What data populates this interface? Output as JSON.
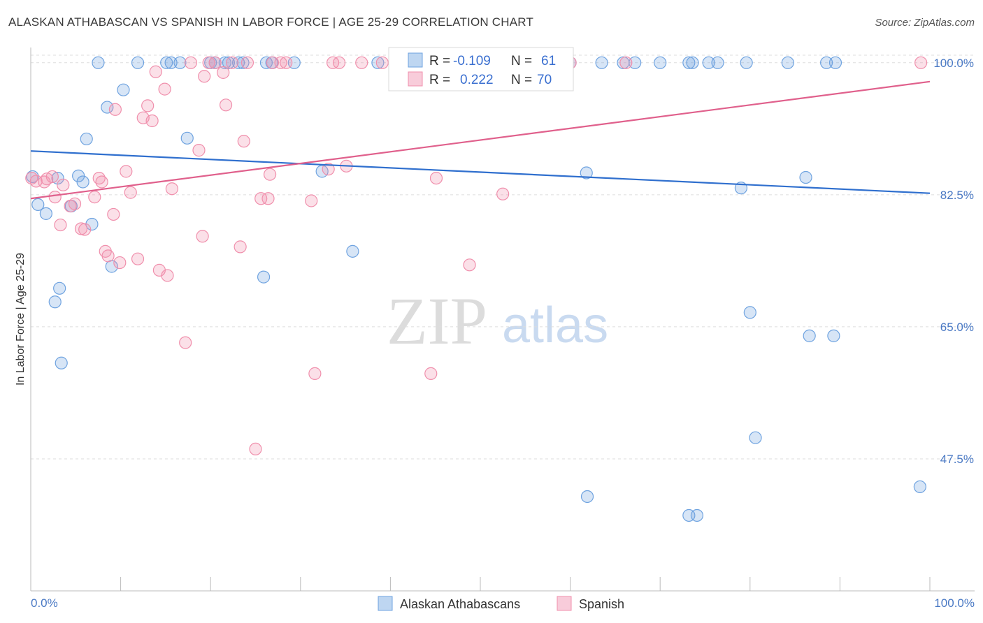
{
  "title": "ALASKAN ATHABASCAN VS SPANISH IN LABOR FORCE | AGE 25-29 CORRELATION CHART",
  "source": "Source: ZipAtlas.com",
  "watermark": {
    "zip": "ZIP",
    "atlas": "atlas"
  },
  "colors": {
    "blue": "#6fa3e0",
    "blue_fill": "rgba(111,163,224,0.28)",
    "blue_line": "#2f6fce",
    "pink": "#f08fac",
    "pink_fill": "rgba(240,143,172,0.28)",
    "pink_line": "#e0608c",
    "tick_text": "#4a79c4",
    "grid": "#dddddd"
  },
  "legend": {
    "row1": {
      "r_label": "R =",
      "r_value": "-0.109",
      "n_label": "N =",
      "n_value": "61"
    },
    "row2": {
      "r_label": "R =",
      "r_value": "0.222",
      "n_label": "N =",
      "n_value": "70"
    }
  },
  "chart_data": {
    "type": "scatter",
    "title": "ALASKAN ATHABASCAN VS SPANISH IN LABOR FORCE | AGE 25-29 CORRELATION CHART",
    "xlabel": "",
    "ylabel": "In Labor Force | Age 25-29",
    "xlim": [
      0,
      100
    ],
    "ylim": [
      30,
      103.5
    ],
    "x_tick_labels": [
      "0.0%",
      "100.0%"
    ],
    "y_ticks": [
      47.5,
      65.0,
      82.5,
      100.0
    ],
    "y_tick_labels": [
      "47.5%",
      "65.0%",
      "82.5%",
      "100.0%"
    ],
    "grid": "horizontal dashed",
    "legend_position": "top-center",
    "series": [
      {
        "name": "Alaskan Athabascans",
        "r": -0.109,
        "n": 61,
        "trend": [
          [
            0,
            88.3
          ],
          [
            100,
            82.7
          ]
        ],
        "points": [
          [
            0.2,
            84.9
          ],
          [
            0.8,
            81.2
          ],
          [
            1.7,
            80
          ],
          [
            2.7,
            68.3
          ],
          [
            3.0,
            84.7
          ],
          [
            3.2,
            70.1
          ],
          [
            3.4,
            60.2
          ],
          [
            4.5,
            81
          ],
          [
            5.3,
            85
          ],
          [
            5.8,
            84.2
          ],
          [
            6.2,
            89.9
          ],
          [
            6.8,
            78.6
          ],
          [
            7.5,
            100
          ],
          [
            8.5,
            94.1
          ],
          [
            9.0,
            73
          ],
          [
            10.3,
            96.4
          ],
          [
            11.9,
            100
          ],
          [
            15.1,
            100
          ],
          [
            15.6,
            100
          ],
          [
            16.6,
            100
          ],
          [
            17.4,
            90
          ],
          [
            20.0,
            100
          ],
          [
            20.5,
            100
          ],
          [
            21.6,
            100
          ],
          [
            22.0,
            100
          ],
          [
            23.1,
            100
          ],
          [
            23.6,
            100
          ],
          [
            25.9,
            71.6
          ],
          [
            26.2,
            100
          ],
          [
            26.8,
            100
          ],
          [
            29.3,
            100
          ],
          [
            32.4,
            85.6
          ],
          [
            35.8,
            75
          ],
          [
            38.6,
            100
          ],
          [
            53.7,
            100
          ],
          [
            58.0,
            100
          ],
          [
            58.3,
            100
          ],
          [
            60.0,
            100
          ],
          [
            61.8,
            85.4
          ],
          [
            63.5,
            100
          ],
          [
            65.9,
            100
          ],
          [
            67.2,
            100
          ],
          [
            70.0,
            100
          ],
          [
            73.2,
            100
          ],
          [
            73.6,
            100
          ],
          [
            75.4,
            100
          ],
          [
            76.4,
            100
          ],
          [
            79.0,
            83.4
          ],
          [
            79.6,
            100
          ],
          [
            84.2,
            100
          ],
          [
            86.2,
            84.8
          ],
          [
            88.5,
            100
          ],
          [
            89.5,
            100
          ],
          [
            61.9,
            42.5
          ],
          [
            73.2,
            40
          ],
          [
            74.1,
            40
          ],
          [
            80.0,
            66.9
          ],
          [
            80.6,
            50.3
          ],
          [
            86.6,
            63.8
          ],
          [
            89.3,
            63.8
          ],
          [
            98.9,
            43.8
          ]
        ]
      },
      {
        "name": "Spanish",
        "r": 0.222,
        "n": 70,
        "trend": [
          [
            0,
            82.0
          ],
          [
            100,
            97.5
          ]
        ],
        "points": [
          [
            0.1,
            84.7
          ],
          [
            0.6,
            84.3
          ],
          [
            1.5,
            84.2
          ],
          [
            1.8,
            84.6
          ],
          [
            2.4,
            84.9
          ],
          [
            2.7,
            82.2
          ],
          [
            3.3,
            78.5
          ],
          [
            3.6,
            83.8
          ],
          [
            4.4,
            81
          ],
          [
            4.9,
            81.3
          ],
          [
            5.6,
            78
          ],
          [
            6.0,
            77.9
          ],
          [
            7.1,
            82.2
          ],
          [
            7.6,
            84.7
          ],
          [
            7.9,
            84.2
          ],
          [
            8.3,
            75
          ],
          [
            8.6,
            74.4
          ],
          [
            9.2,
            79.9
          ],
          [
            9.4,
            93.8
          ],
          [
            9.9,
            73.5
          ],
          [
            10.6,
            85.6
          ],
          [
            11.1,
            82.8
          ],
          [
            11.9,
            74
          ],
          [
            12.5,
            92.7
          ],
          [
            13.0,
            94.3
          ],
          [
            13.5,
            92.3
          ],
          [
            13.9,
            98.8
          ],
          [
            14.3,
            72.5
          ],
          [
            14.9,
            96.5
          ],
          [
            15.2,
            71.8
          ],
          [
            15.7,
            83.3
          ],
          [
            17.2,
            62.9
          ],
          [
            17.8,
            100
          ],
          [
            18.7,
            88.4
          ],
          [
            19.1,
            77
          ],
          [
            19.3,
            98.2
          ],
          [
            19.8,
            100
          ],
          [
            20.5,
            100
          ],
          [
            21.4,
            98.7
          ],
          [
            21.7,
            94.4
          ],
          [
            22.4,
            100
          ],
          [
            23.3,
            75.6
          ],
          [
            23.7,
            89.6
          ],
          [
            24.1,
            100
          ],
          [
            25.0,
            48.8
          ],
          [
            25.6,
            82
          ],
          [
            26.4,
            82
          ],
          [
            26.6,
            85.2
          ],
          [
            26.9,
            100
          ],
          [
            27.8,
            100
          ],
          [
            28.4,
            100
          ],
          [
            31.2,
            81.7
          ],
          [
            31.6,
            58.8
          ],
          [
            33.1,
            85.9
          ],
          [
            33.6,
            100
          ],
          [
            34.3,
            100
          ],
          [
            35.1,
            86.3
          ],
          [
            36.8,
            100
          ],
          [
            39.1,
            100
          ],
          [
            41.4,
            100
          ],
          [
            44.5,
            58.8
          ],
          [
            45.1,
            84.7
          ],
          [
            48.8,
            73.2
          ],
          [
            52.5,
            82.6
          ],
          [
            55.0,
            100
          ],
          [
            55.8,
            100
          ],
          [
            59.0,
            100
          ],
          [
            60.0,
            100
          ],
          [
            66.2,
            100
          ],
          [
            99.0,
            100
          ]
        ]
      }
    ]
  }
}
